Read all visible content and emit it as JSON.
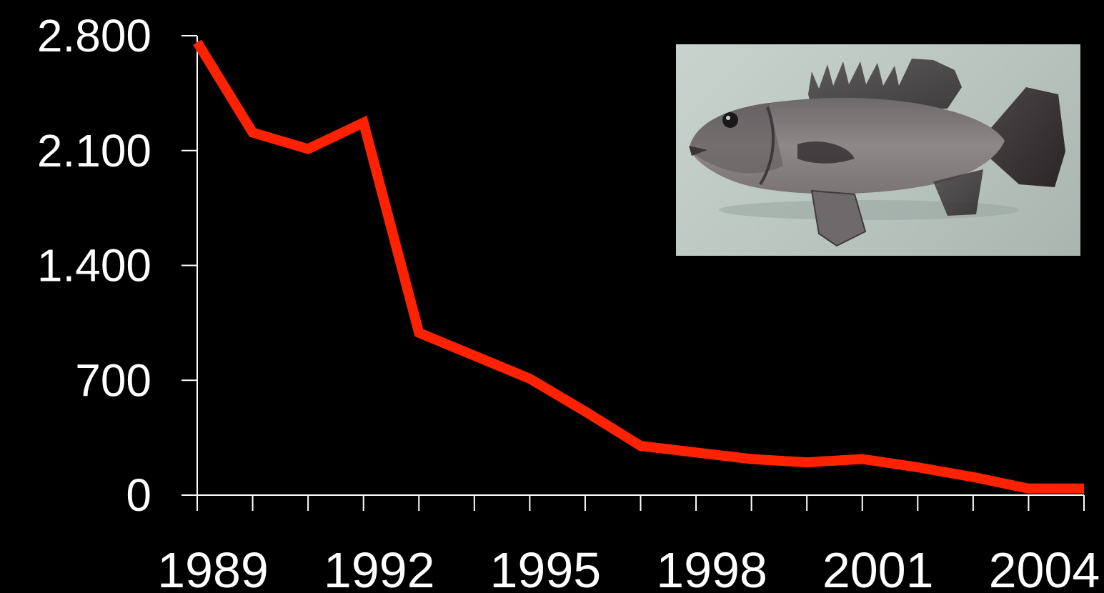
{
  "chart_data": {
    "type": "line",
    "x": [
      1989,
      1990,
      1991,
      1992,
      1993,
      1994,
      1995,
      1996,
      1997,
      1998,
      1999,
      2000,
      2001,
      2002,
      2003,
      2004,
      2005
    ],
    "series": [
      {
        "values": [
          2760,
          2210,
          2110,
          2270,
          990,
          850,
          710,
          510,
          300,
          260,
          220,
          200,
          220,
          170,
          110,
          40,
          40
        ],
        "color": "#ff2200"
      }
    ],
    "xticks": [
      1989,
      1990,
      1991,
      1992,
      1993,
      1994,
      1995,
      1996,
      1997,
      1998,
      1999,
      2000,
      2001,
      2002,
      2003,
      2004,
      2005
    ],
    "xtick_labels": [
      {
        "x": 1989,
        "label": "1989"
      },
      {
        "x": 1992,
        "label": "1992"
      },
      {
        "x": 1995,
        "label": "1995"
      },
      {
        "x": 1998,
        "label": "1998"
      },
      {
        "x": 2001,
        "label": "2001"
      },
      {
        "x": 2004,
        "label": "2004"
      }
    ],
    "yticks": [
      {
        "value": 0,
        "label": "0"
      },
      {
        "value": 700,
        "label": "700"
      },
      {
        "value": 1400,
        "label": "1.400"
      },
      {
        "value": 2100,
        "label": "2.100"
      },
      {
        "value": 2800,
        "label": "2.800"
      }
    ],
    "xlim": [
      1989,
      2005
    ],
    "ylim": [
      0,
      2800
    ],
    "title": "",
    "xlabel": "",
    "ylabel": "",
    "grid": false,
    "background_color": "#000000",
    "axis_color": "#ffffff"
  },
  "inset_image": {
    "subject": "grouper-fish-photo"
  }
}
